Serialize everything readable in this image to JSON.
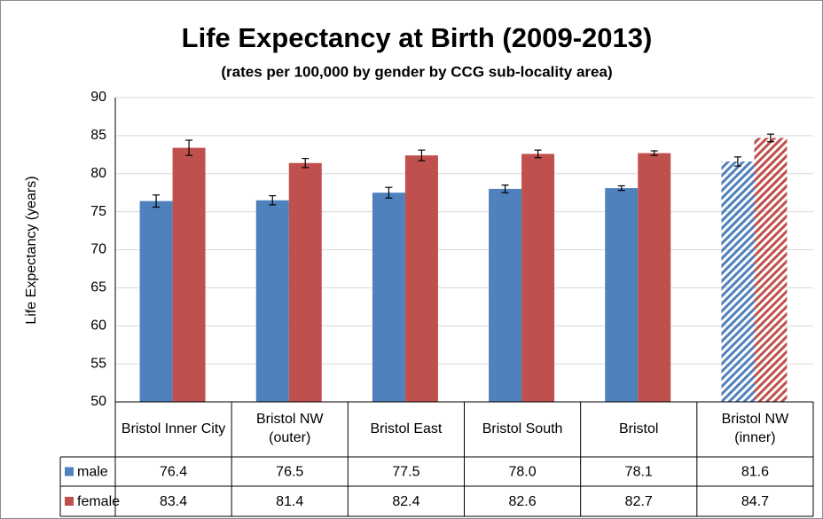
{
  "chart_data": {
    "type": "bar",
    "title": "Life Expectancy at Birth (2009-2013)",
    "subtitle": "(rates per 100,000 by gender by CCG sub-locality area)",
    "y_label": "Life Expectancy (years)",
    "categories": [
      "Bristol Inner City",
      "Bristol NW (outer)",
      "Bristol East",
      "Bristol South",
      "Bristol",
      "Bristol NW (inner)"
    ],
    "patterned": [
      false,
      false,
      false,
      false,
      false,
      true
    ],
    "series": [
      {
        "name": "male",
        "color": "#4f81bd",
        "values": [
          76.4,
          76.5,
          77.5,
          78.0,
          78.1,
          81.6
        ],
        "value_labels": [
          "76.4",
          "76.5",
          "77.5",
          "78.0",
          "78.1",
          "81.6"
        ],
        "errors": [
          0.8,
          0.6,
          0.7,
          0.5,
          0.3,
          0.6
        ]
      },
      {
        "name": "female",
        "color": "#c0504d",
        "values": [
          83.4,
          81.4,
          82.4,
          82.6,
          82.7,
          84.7
        ],
        "errors": [
          1.0,
          0.6,
          0.7,
          0.5,
          0.3,
          0.5
        ]
      }
    ],
    "ylim": [
      50,
      90
    ],
    "yticks": [
      50,
      55,
      60,
      65,
      70,
      75,
      80,
      85,
      90
    ],
    "grid": true
  }
}
